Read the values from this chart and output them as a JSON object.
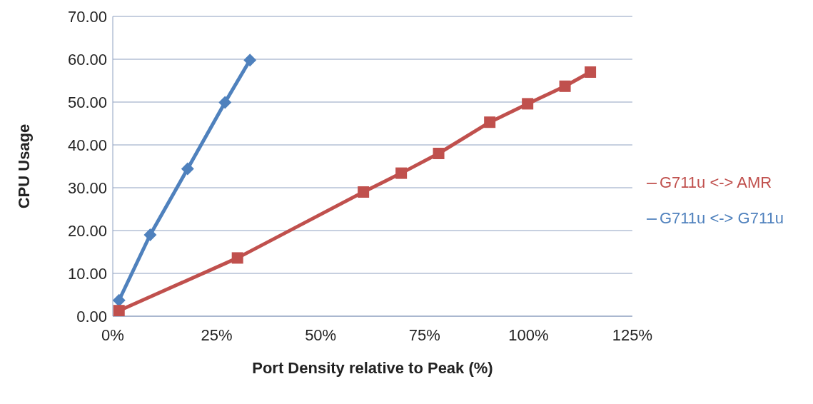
{
  "chart_data": {
    "type": "line",
    "xlabel": "Port Density relative to Peak (%)",
    "ylabel": "CPU Usage",
    "xlim": [
      0,
      125
    ],
    "xticks": [
      {
        "value": 0,
        "label": "0%"
      },
      {
        "value": 25,
        "label": "25%"
      },
      {
        "value": 50,
        "label": "50%"
      },
      {
        "value": 75,
        "label": "75%"
      },
      {
        "value": 100,
        "label": "100%"
      },
      {
        "value": 125,
        "label": "125%"
      }
    ],
    "ylim": [
      0,
      70
    ],
    "yticks": [
      {
        "value": 0,
        "label": "0.00"
      },
      {
        "value": 10,
        "label": "10.00"
      },
      {
        "value": 20,
        "label": "20.00"
      },
      {
        "value": 30,
        "label": "30.00"
      },
      {
        "value": 40,
        "label": "40.00"
      },
      {
        "value": 50,
        "label": "50.00"
      },
      {
        "value": 60,
        "label": "60.00"
      },
      {
        "value": 70,
        "label": "70.00"
      }
    ],
    "grid": "y",
    "legend": "right",
    "series": [
      {
        "name": "G711u <-> G711u",
        "color": "#4f81bd",
        "marker": "diamond",
        "x": [
          1.5,
          9,
          18,
          27,
          33
        ],
        "values": [
          3.7,
          19,
          34.4,
          49.9,
          59.8
        ]
      },
      {
        "name": "G711u <-> AMR",
        "color": "#c0504d",
        "marker": "square",
        "x": [
          1.5,
          30,
          60.3,
          69.4,
          78.4,
          90.7,
          99.8,
          108.8,
          114.9
        ],
        "values": [
          1.3,
          13.6,
          29,
          33.4,
          38,
          45.3,
          49.6,
          53.7,
          57
        ]
      }
    ]
  }
}
